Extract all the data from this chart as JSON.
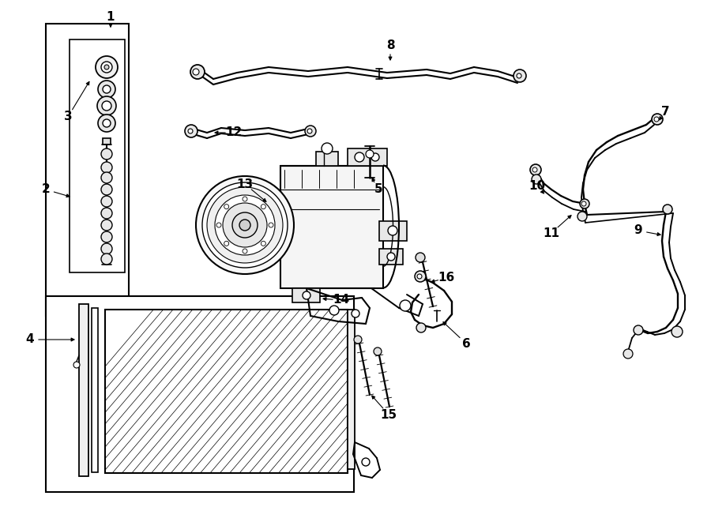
{
  "bg_color": "#ffffff",
  "fig_width": 9.0,
  "fig_height": 6.61,
  "dpi": 100,
  "lw_main": 1.4,
  "lw_thin": 0.8,
  "lw_thick": 2.0
}
